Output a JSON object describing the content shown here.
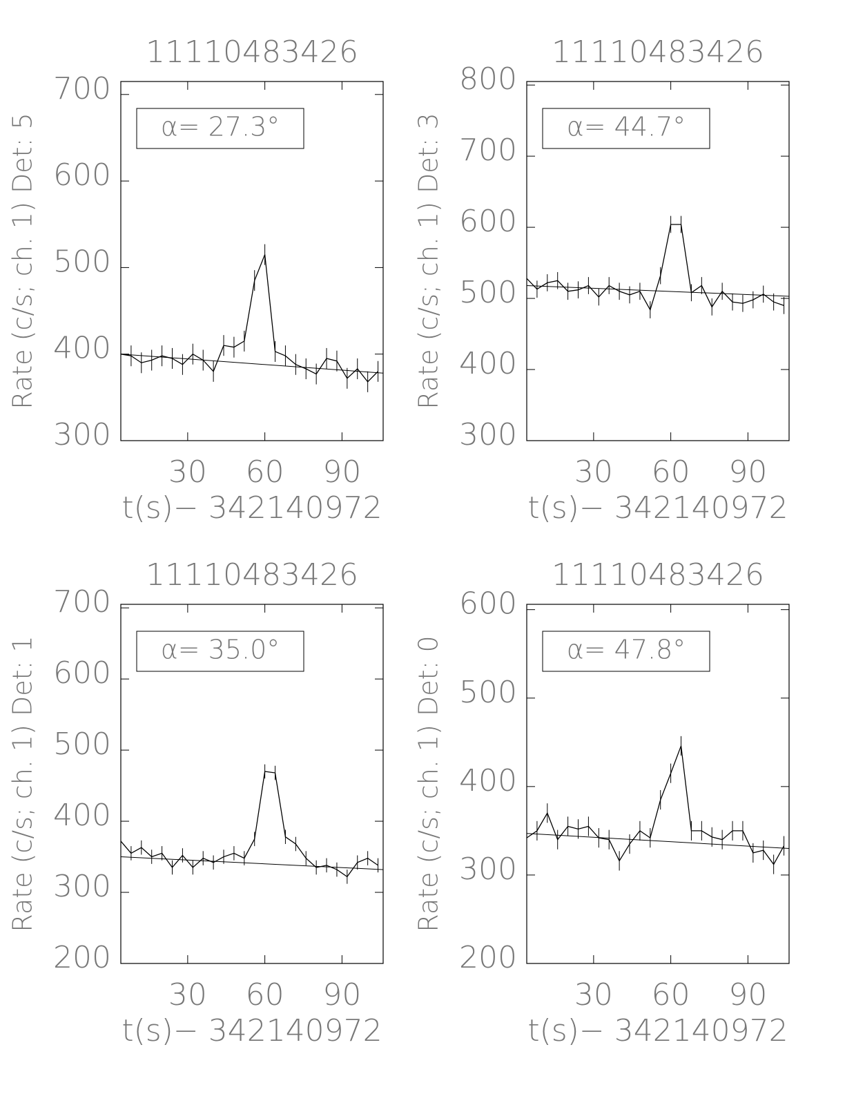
{
  "chart_data": [
    {
      "type": "line",
      "title": "11110483426",
      "xlabel": "t(s)− 342140972",
      "ylabel": "Rate (c/s; ch. 1) Det: 5",
      "annotation": "α= 27.3°",
      "x": [
        4,
        8,
        12,
        16,
        20,
        24,
        28,
        32,
        36,
        40,
        44,
        48,
        52,
        56,
        60,
        64,
        68,
        72,
        76,
        80,
        84,
        88,
        92,
        96,
        100,
        104
      ],
      "values": [
        400,
        398,
        390,
        393,
        398,
        395,
        388,
        400,
        393,
        380,
        410,
        408,
        415,
        485,
        515,
        403,
        398,
        388,
        383,
        377,
        395,
        392,
        372,
        383,
        368,
        380
      ],
      "error": 12,
      "fit": {
        "x": [
          4,
          106
        ],
        "values": [
          400,
          378
        ]
      },
      "color": "#000000",
      "xlim": [
        4,
        106
      ],
      "ylim": [
        300,
        715
      ],
      "xticks": [
        30,
        60,
        90
      ],
      "yticks": [
        300,
        400,
        500,
        600,
        700
      ]
    },
    {
      "type": "line",
      "title": "11110483426",
      "xlabel": "t(s)− 342140972",
      "ylabel": "Rate (c/s; ch. 1) Det: 3",
      "annotation": "α= 44.7°",
      "x": [
        4,
        8,
        12,
        16,
        20,
        24,
        28,
        32,
        36,
        40,
        44,
        48,
        52,
        56,
        60,
        64,
        68,
        72,
        76,
        80,
        84,
        88,
        92,
        96,
        100,
        104
      ],
      "values": [
        528,
        513,
        522,
        525,
        510,
        512,
        518,
        502,
        518,
        510,
        505,
        510,
        484,
        532,
        604,
        604,
        508,
        518,
        488,
        510,
        495,
        493,
        498,
        506,
        495,
        490
      ],
      "error": 12,
      "fit": {
        "x": [
          4,
          106
        ],
        "values": [
          518,
          503
        ]
      },
      "color": "#000000",
      "xlim": [
        4,
        106
      ],
      "ylim": [
        300,
        805
      ],
      "xticks": [
        30,
        60,
        90
      ],
      "yticks": [
        300,
        400,
        500,
        600,
        700,
        800
      ]
    },
    {
      "type": "line",
      "title": "11110483426",
      "xlabel": "t(s)− 342140972",
      "ylabel": "Rate (c/s; ch. 1) Det: 1",
      "annotation": "α= 35.0°",
      "x": [
        4,
        8,
        12,
        16,
        20,
        24,
        28,
        32,
        36,
        40,
        44,
        48,
        52,
        56,
        60,
        64,
        68,
        72,
        76,
        80,
        84,
        88,
        92,
        96,
        100,
        104
      ],
      "values": [
        372,
        355,
        363,
        350,
        355,
        335,
        352,
        335,
        348,
        342,
        350,
        355,
        348,
        375,
        470,
        468,
        378,
        368,
        348,
        335,
        338,
        332,
        322,
        342,
        348,
        338
      ],
      "error": 10,
      "fit": {
        "x": [
          4,
          106
        ],
        "values": [
          350,
          332
        ]
      },
      "color": "#000000",
      "xlim": [
        4,
        106
      ],
      "ylim": [
        200,
        705
      ],
      "xticks": [
        30,
        60,
        90
      ],
      "yticks": [
        200,
        300,
        400,
        500,
        600,
        700
      ]
    },
    {
      "type": "line",
      "title": "11110483426",
      "xlabel": "t(s)− 342140972",
      "ylabel": "Rate (c/s; ch. 1) Det: 0",
      "annotation": "α= 47.8°",
      "x": [
        4,
        8,
        12,
        16,
        20,
        24,
        28,
        32,
        36,
        40,
        44,
        48,
        52,
        56,
        60,
        64,
        68,
        72,
        76,
        80,
        84,
        88,
        92,
        96,
        100,
        104
      ],
      "values": [
        342,
        350,
        370,
        340,
        355,
        352,
        355,
        342,
        340,
        316,
        335,
        350,
        342,
        385,
        415,
        446,
        350,
        350,
        343,
        340,
        350,
        350,
        325,
        328,
        312,
        333
      ],
      "error": 11,
      "fit": {
        "x": [
          4,
          106
        ],
        "values": [
          347,
          330
        ]
      },
      "color": "#000000",
      "xlim": [
        4,
        106
      ],
      "ylim": [
        200,
        606
      ],
      "xticks": [
        30,
        60,
        90
      ],
      "yticks": [
        200,
        300,
        400,
        500,
        600
      ]
    }
  ]
}
